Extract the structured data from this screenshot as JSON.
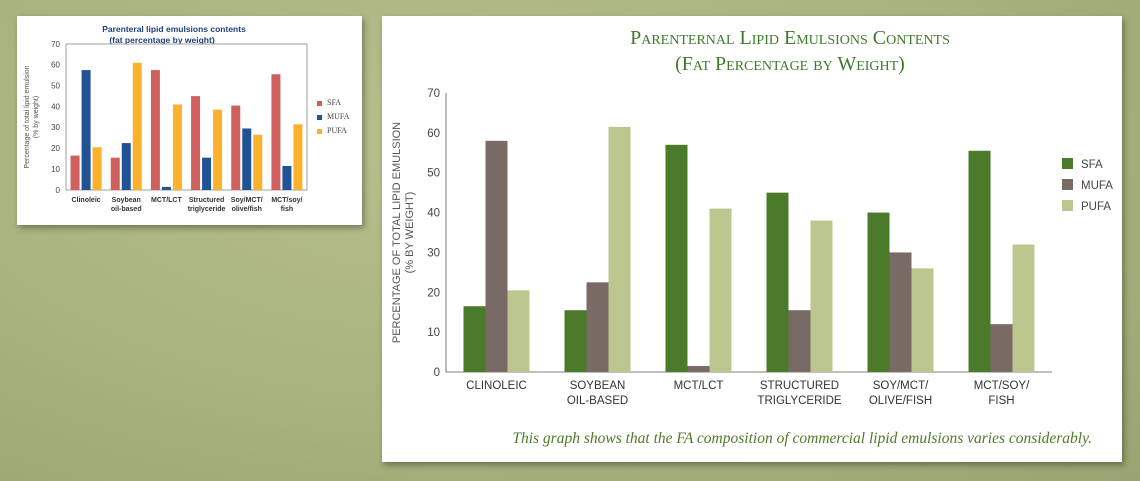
{
  "chart_data": [
    {
      "type": "bar",
      "title": "Parenteral lipid emulsions contents",
      "subtitle": "(fat percentage by weight)",
      "ylabel_line1": "Percentage of total lipid emulsion",
      "ylabel_line2": "(% by weight)",
      "xlabel": "",
      "ylim": [
        0,
        70
      ],
      "yticks": [
        0,
        10,
        20,
        30,
        40,
        50,
        60,
        70
      ],
      "grid": false,
      "legend_position": "right",
      "categories": [
        [
          "Clinoleic"
        ],
        [
          "Soybean",
          "oil-based"
        ],
        [
          "MCT/LCT"
        ],
        [
          "Structured",
          "triglyceride"
        ],
        [
          "Soy/MCT/",
          "olive/fish"
        ],
        [
          "MCT/soy/",
          "fish"
        ]
      ],
      "series": [
        {
          "name": "SFA",
          "color": "#d0605e",
          "values": [
            16.5,
            15.5,
            57.5,
            45,
            40.5,
            55.5
          ]
        },
        {
          "name": "MUFA",
          "color": "#1f5394",
          "values": [
            57.5,
            22.5,
            1.5,
            15.5,
            29.5,
            11.5
          ]
        },
        {
          "name": "PUFA",
          "color": "#fbb12c",
          "values": [
            20.5,
            61,
            41,
            38.5,
            26.5,
            31.5
          ]
        }
      ]
    },
    {
      "type": "bar",
      "title_line1": "Parenternal Lipid Emulsions Contents",
      "title_line2": "(Fat Percentage by Weight)",
      "ylabel_line1": "PERCENTAGE OF TOTAL LIPID EMULSION",
      "ylabel_line2": "(% BY WEIGHT)",
      "xlabel": "",
      "ylim": [
        0,
        70
      ],
      "yticks": [
        0,
        10,
        20,
        30,
        40,
        50,
        60,
        70
      ],
      "grid": false,
      "legend_position": "right",
      "categories": [
        [
          "CLINOLEIC"
        ],
        [
          "SOYBEAN",
          "OIL-BASED"
        ],
        [
          "MCT/LCT"
        ],
        [
          "STRUCTURED",
          "TRIGLYCERIDE"
        ],
        [
          "SOY/MCT/",
          "OLIVE/FISH"
        ],
        [
          "MCT/SOY/",
          "FISH"
        ]
      ],
      "series": [
        {
          "name": "SFA",
          "color": "#4a7a2a",
          "values": [
            16.5,
            15.5,
            57,
            45,
            40,
            55.5
          ]
        },
        {
          "name": "MUFA",
          "color": "#7a6a65",
          "values": [
            58,
            22.5,
            1.5,
            15.5,
            30,
            12
          ]
        },
        {
          "name": "PUFA",
          "color": "#bcc78f",
          "values": [
            20.5,
            61.5,
            41,
            38,
            26,
            32
          ]
        }
      ]
    }
  ],
  "caption": "This graph shows that the FA composition of commercial lipid emulsions varies considerably."
}
